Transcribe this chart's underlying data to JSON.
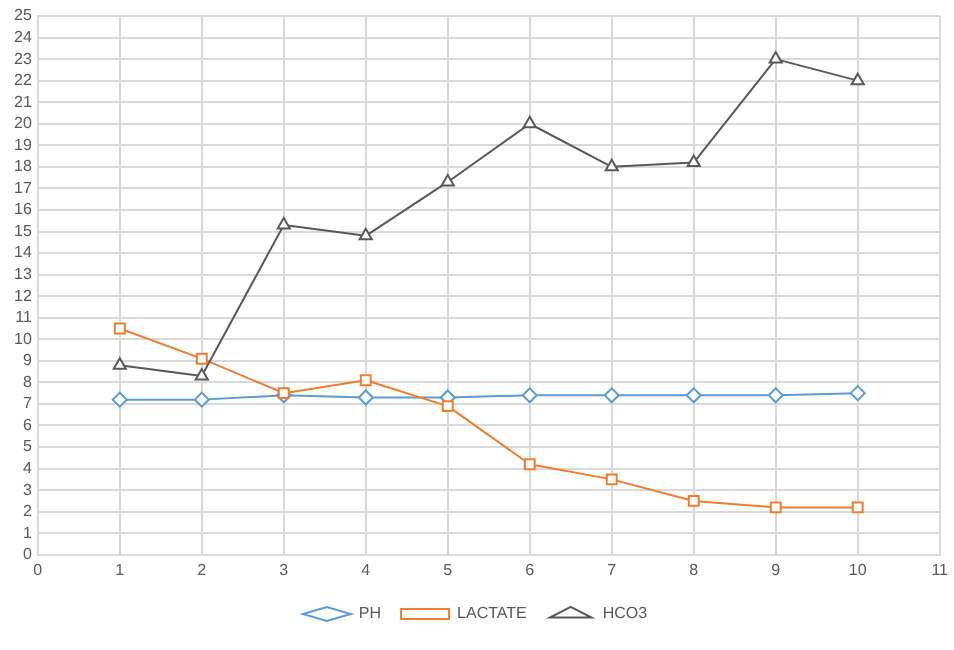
{
  "chart_data": {
    "type": "line",
    "x": [
      1,
      2,
      3,
      4,
      5,
      6,
      7,
      8,
      9,
      10
    ],
    "series": [
      {
        "name": "PH",
        "color": "#5b9bd5",
        "marker": "diamond",
        "values": [
          7.2,
          7.2,
          7.4,
          7.3,
          7.3,
          7.4,
          7.4,
          7.4,
          7.4,
          7.5
        ]
      },
      {
        "name": "LACTATE",
        "color": "#ed7d31",
        "marker": "square",
        "values": [
          10.5,
          9.1,
          7.5,
          8.1,
          6.9,
          4.2,
          3.5,
          2.5,
          2.2,
          2.2
        ]
      },
      {
        "name": "HCO3",
        "color": "#595959",
        "marker": "triangle",
        "values": [
          8.8,
          8.3,
          15.3,
          14.8,
          17.3,
          20,
          18,
          18.2,
          23,
          22
        ]
      }
    ],
    "xlim": [
      0,
      11
    ],
    "xticks": [
      0,
      1,
      2,
      3,
      4,
      5,
      6,
      7,
      8,
      9,
      10,
      11
    ],
    "ylim": [
      0,
      25
    ],
    "yticks": [
      0,
      1,
      2,
      3,
      4,
      5,
      6,
      7,
      8,
      9,
      10,
      11,
      12,
      13,
      14,
      15,
      16,
      17,
      18,
      19,
      20,
      21,
      22,
      23,
      24,
      25
    ],
    "grid": true,
    "legend": "bottom",
    "line_style": "solid"
  }
}
